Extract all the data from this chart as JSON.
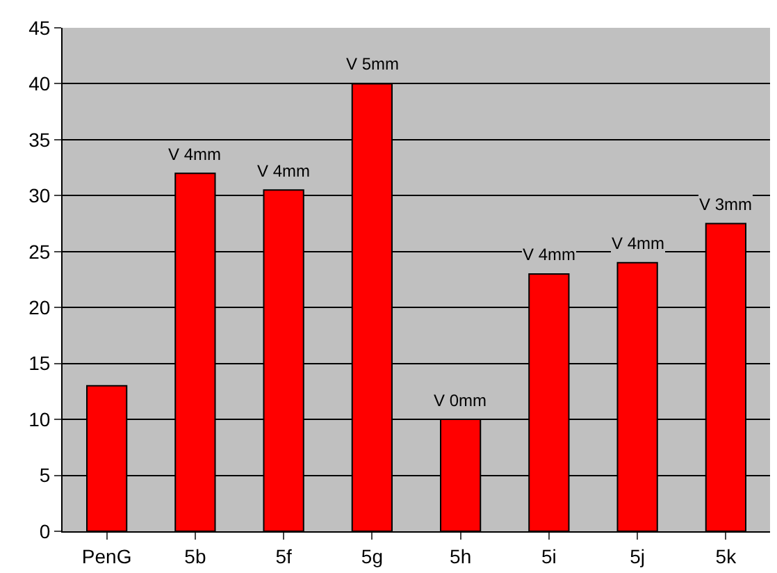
{
  "chart_data": {
    "type": "bar",
    "categories": [
      "PenG",
      "5b",
      "5f",
      "5g",
      "5h",
      "5i",
      "5j",
      "5k"
    ],
    "values": [
      13,
      32,
      30.5,
      40,
      10,
      23,
      24,
      27.5
    ],
    "value_labels": [
      null,
      "V 4mm",
      "V 4mm",
      "V 5mm",
      "V 0mm",
      "V 4mm",
      "V 4mm",
      "V 3mm"
    ],
    "color": "#ff0000",
    "ylim": [
      0,
      45
    ],
    "yticks": [
      0,
      5,
      10,
      15,
      20,
      25,
      30,
      35,
      40,
      45
    ],
    "grid": "y"
  }
}
